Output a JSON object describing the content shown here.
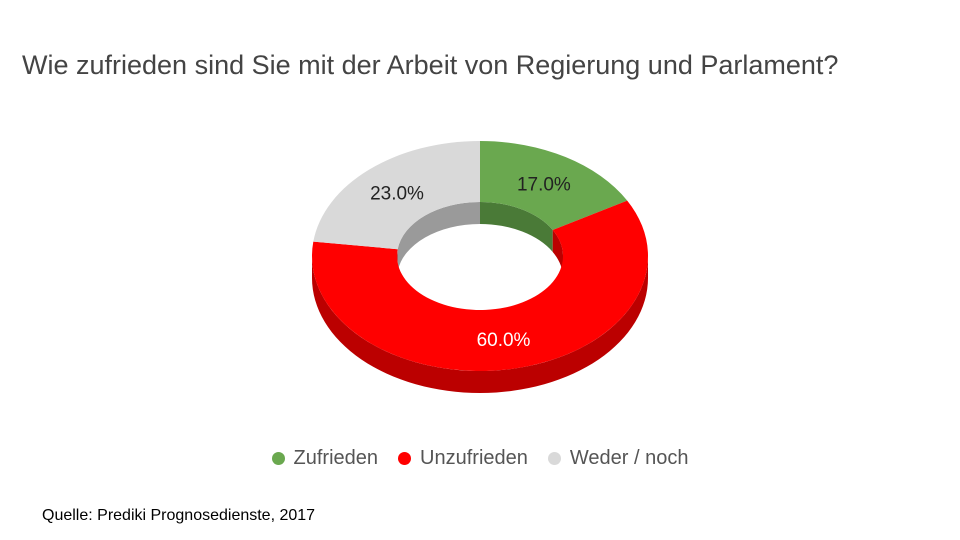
{
  "chart_data": {
    "type": "pie",
    "variant": "3d-donut",
    "title": "Wie zufrieden sind Sie mit der Arbeit von Regierung und Parlament?",
    "slices": [
      {
        "name": "Zufrieden",
        "value": 17.0,
        "label": "17.0%",
        "color": "#6aa84f",
        "side_color": "#4a7a37",
        "label_color": "#222222"
      },
      {
        "name": "Unzufrieden",
        "value": 60.0,
        "label": "60.0%",
        "color": "#ff0000",
        "side_color": "#bb0000",
        "label_color": "#ffffff"
      },
      {
        "name": "Weder / noch",
        "value": 23.0,
        "label": "23.0%",
        "color": "#d9d9d9",
        "side_color": "#9a9a9a",
        "label_color": "#222222"
      }
    ],
    "legend_position": "bottom"
  },
  "source": "Quelle: Prediki Prognosedienste,  2017"
}
